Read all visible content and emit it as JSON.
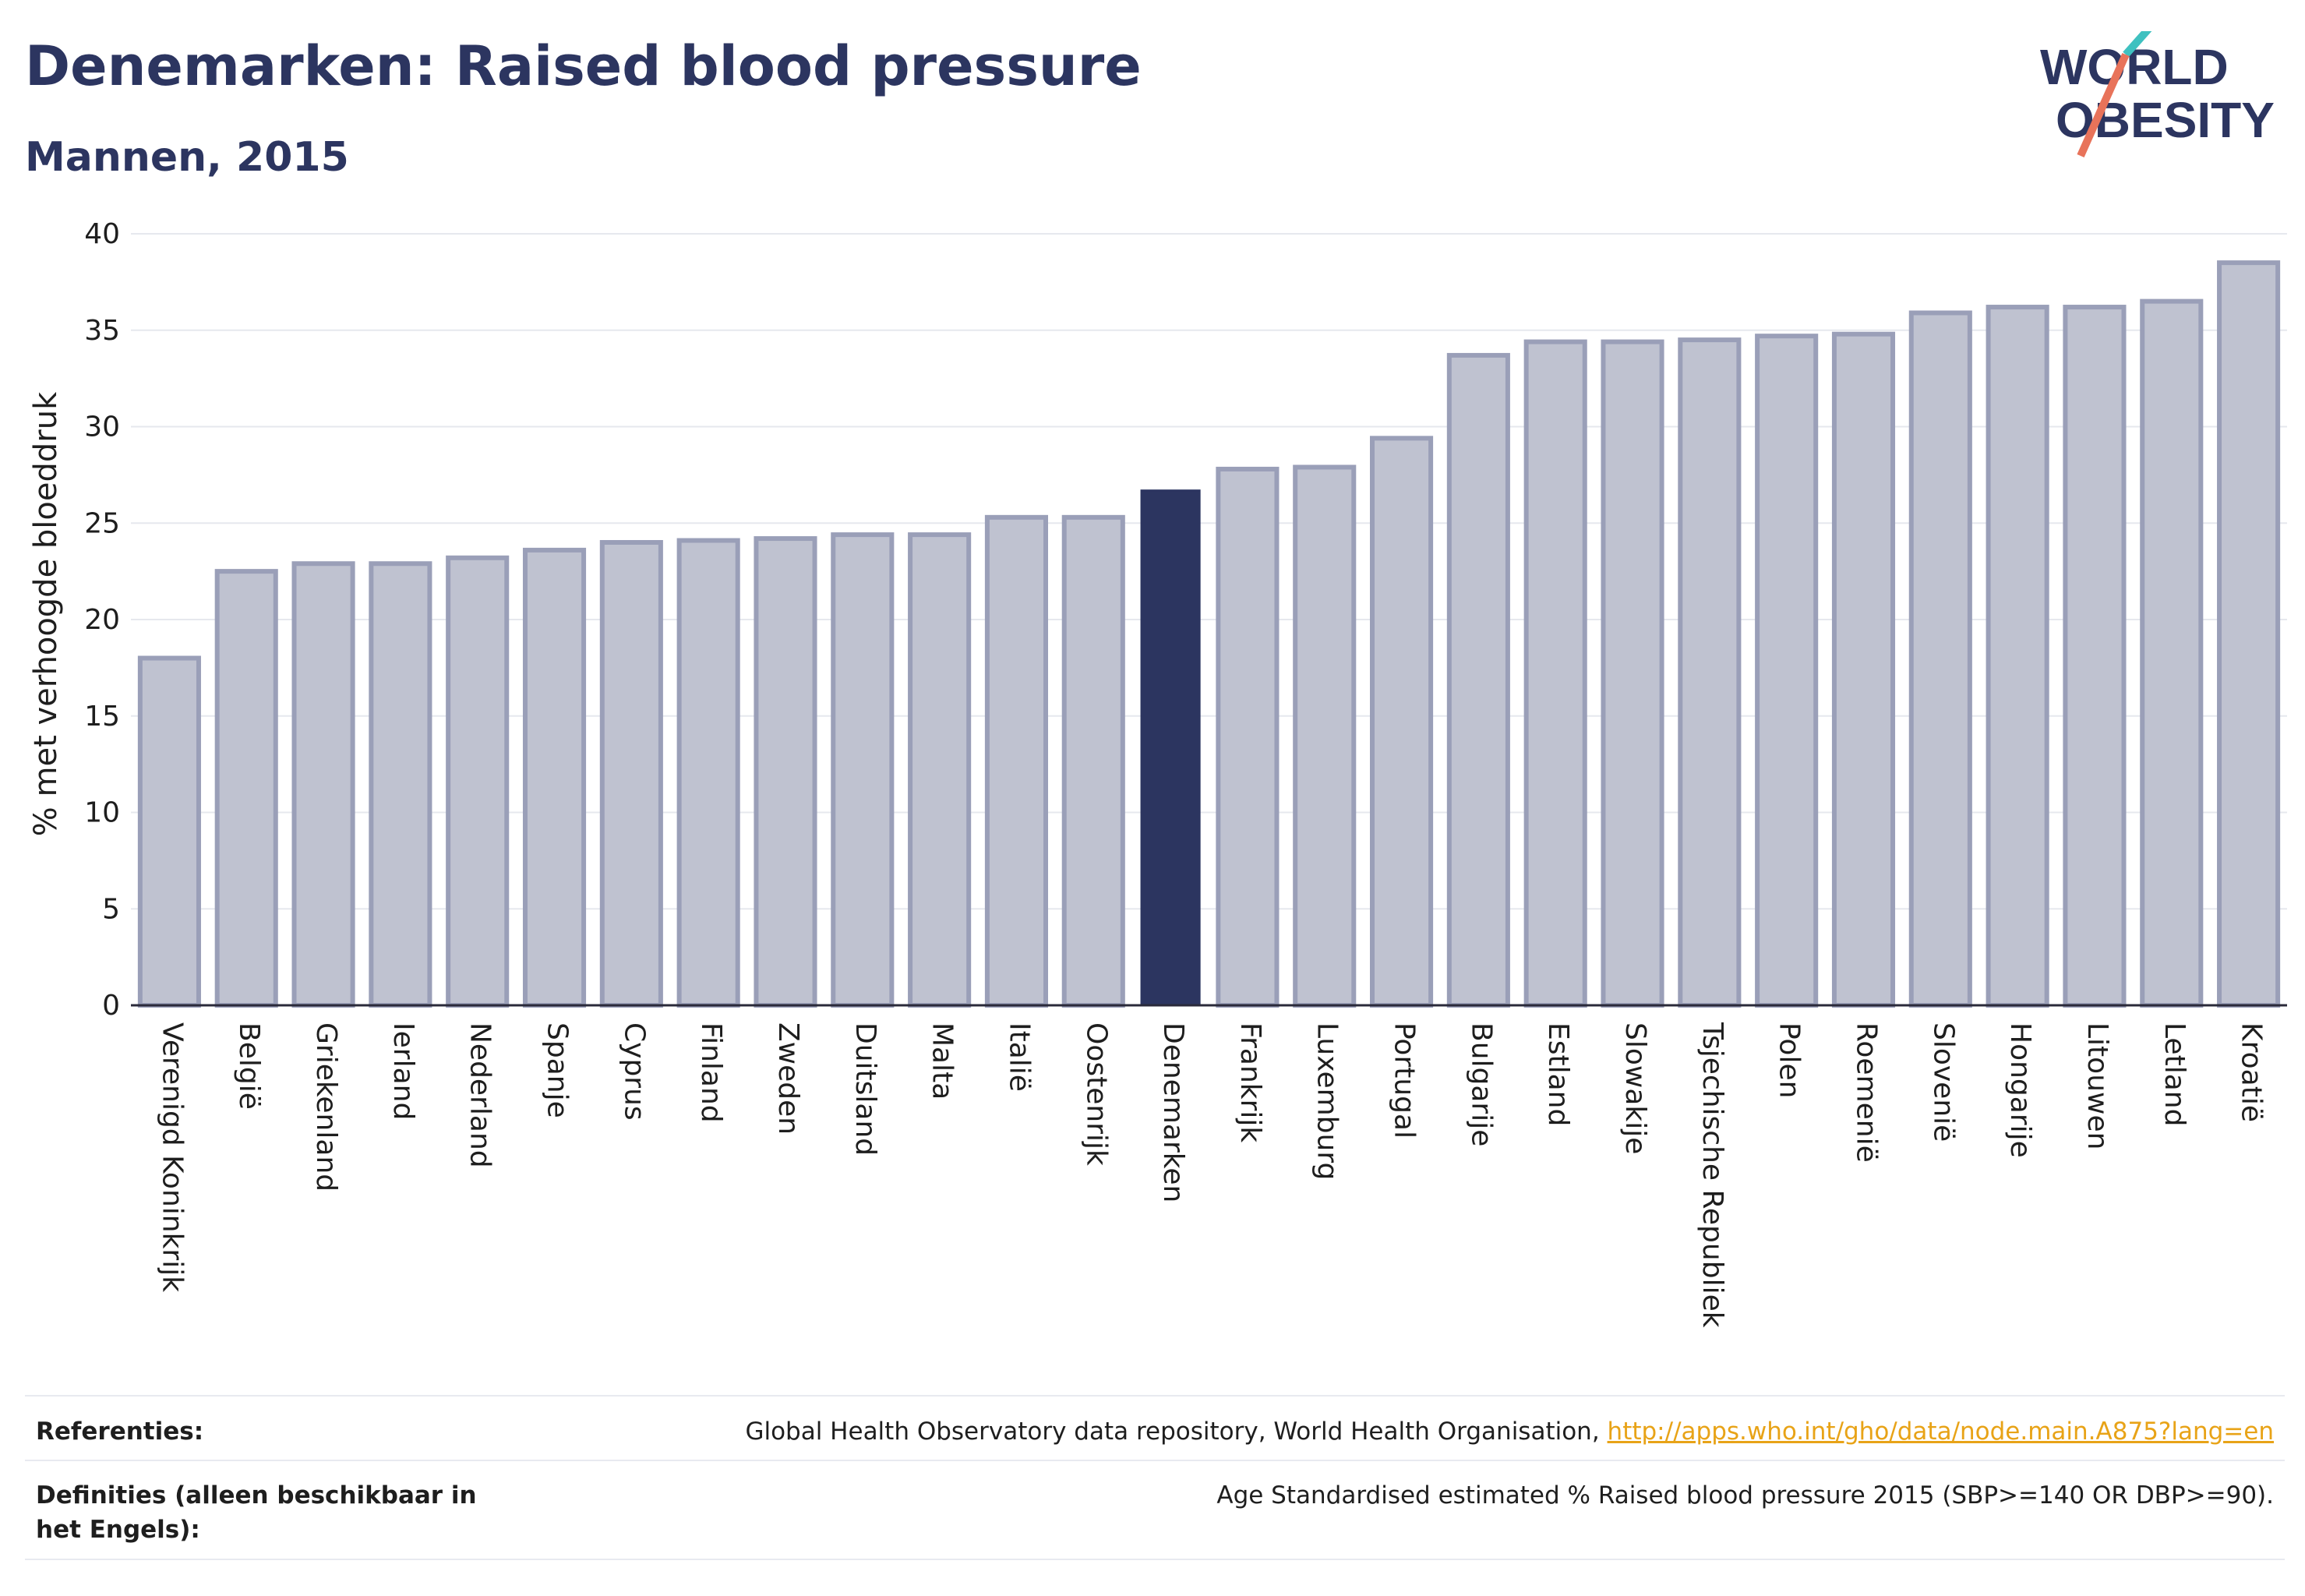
{
  "header": {
    "title": "Denemarken: Raised blood pressure",
    "subtitle": "Mannen, 2015"
  },
  "logo": {
    "line1": "WORLD",
    "line2": "OBESITY"
  },
  "colors": {
    "bar": "#bfc2d0",
    "bar_border": "#9a9fb8",
    "highlight": "#2c3560",
    "title": "#2c3560",
    "link": "#e8a317",
    "logo_teal": "#3fc1c0",
    "logo_coral": "#e8735a"
  },
  "chart_data": {
    "type": "bar",
    "title": "Denemarken: Raised blood pressure",
    "subtitle": "Mannen, 2015",
    "ylabel": "% met verhoogde bloeddruk",
    "xlabel": "",
    "ylim": [
      0,
      40
    ],
    "yticks": [
      0,
      5,
      10,
      15,
      20,
      25,
      30,
      35,
      40
    ],
    "grid": true,
    "highlight": "Denemarken",
    "categories": [
      "Verenigd Koninkrijk",
      "België",
      "Griekenland",
      "Ierland",
      "Nederland",
      "Spanje",
      "Cyprus",
      "Finland",
      "Zweden",
      "Duitsland",
      "Malta",
      "Italië",
      "Oostenrijk",
      "Denemarken",
      "Frankrijk",
      "Luxemburg",
      "Portugal",
      "Bulgarije",
      "Estland",
      "Slowakije",
      "Tsjechische Republiek",
      "Polen",
      "Roemenië",
      "Slovenië",
      "Hongarije",
      "Litouwen",
      "Letland",
      "Kroatië"
    ],
    "values": [
      18.0,
      22.5,
      22.9,
      22.9,
      23.2,
      23.6,
      24.0,
      24.1,
      24.2,
      24.4,
      24.4,
      25.3,
      25.3,
      26.7,
      27.8,
      27.9,
      29.4,
      33.7,
      34.4,
      34.4,
      34.5,
      34.7,
      34.8,
      35.9,
      36.2,
      36.2,
      36.5,
      38.5
    ]
  },
  "footer": {
    "references_label": "Referenties:",
    "references_text": "Global Health Observatory data repository, World Health Organisation,",
    "references_link": "http://apps.who.int/gho/data/node.main.A875?lang=en",
    "definitions_label": "Definities (alleen beschikbaar in het Engels):",
    "definitions_text": "Age Standardised estimated % Raised blood pressure 2015 (SBP>=140 OR DBP>=90)."
  }
}
